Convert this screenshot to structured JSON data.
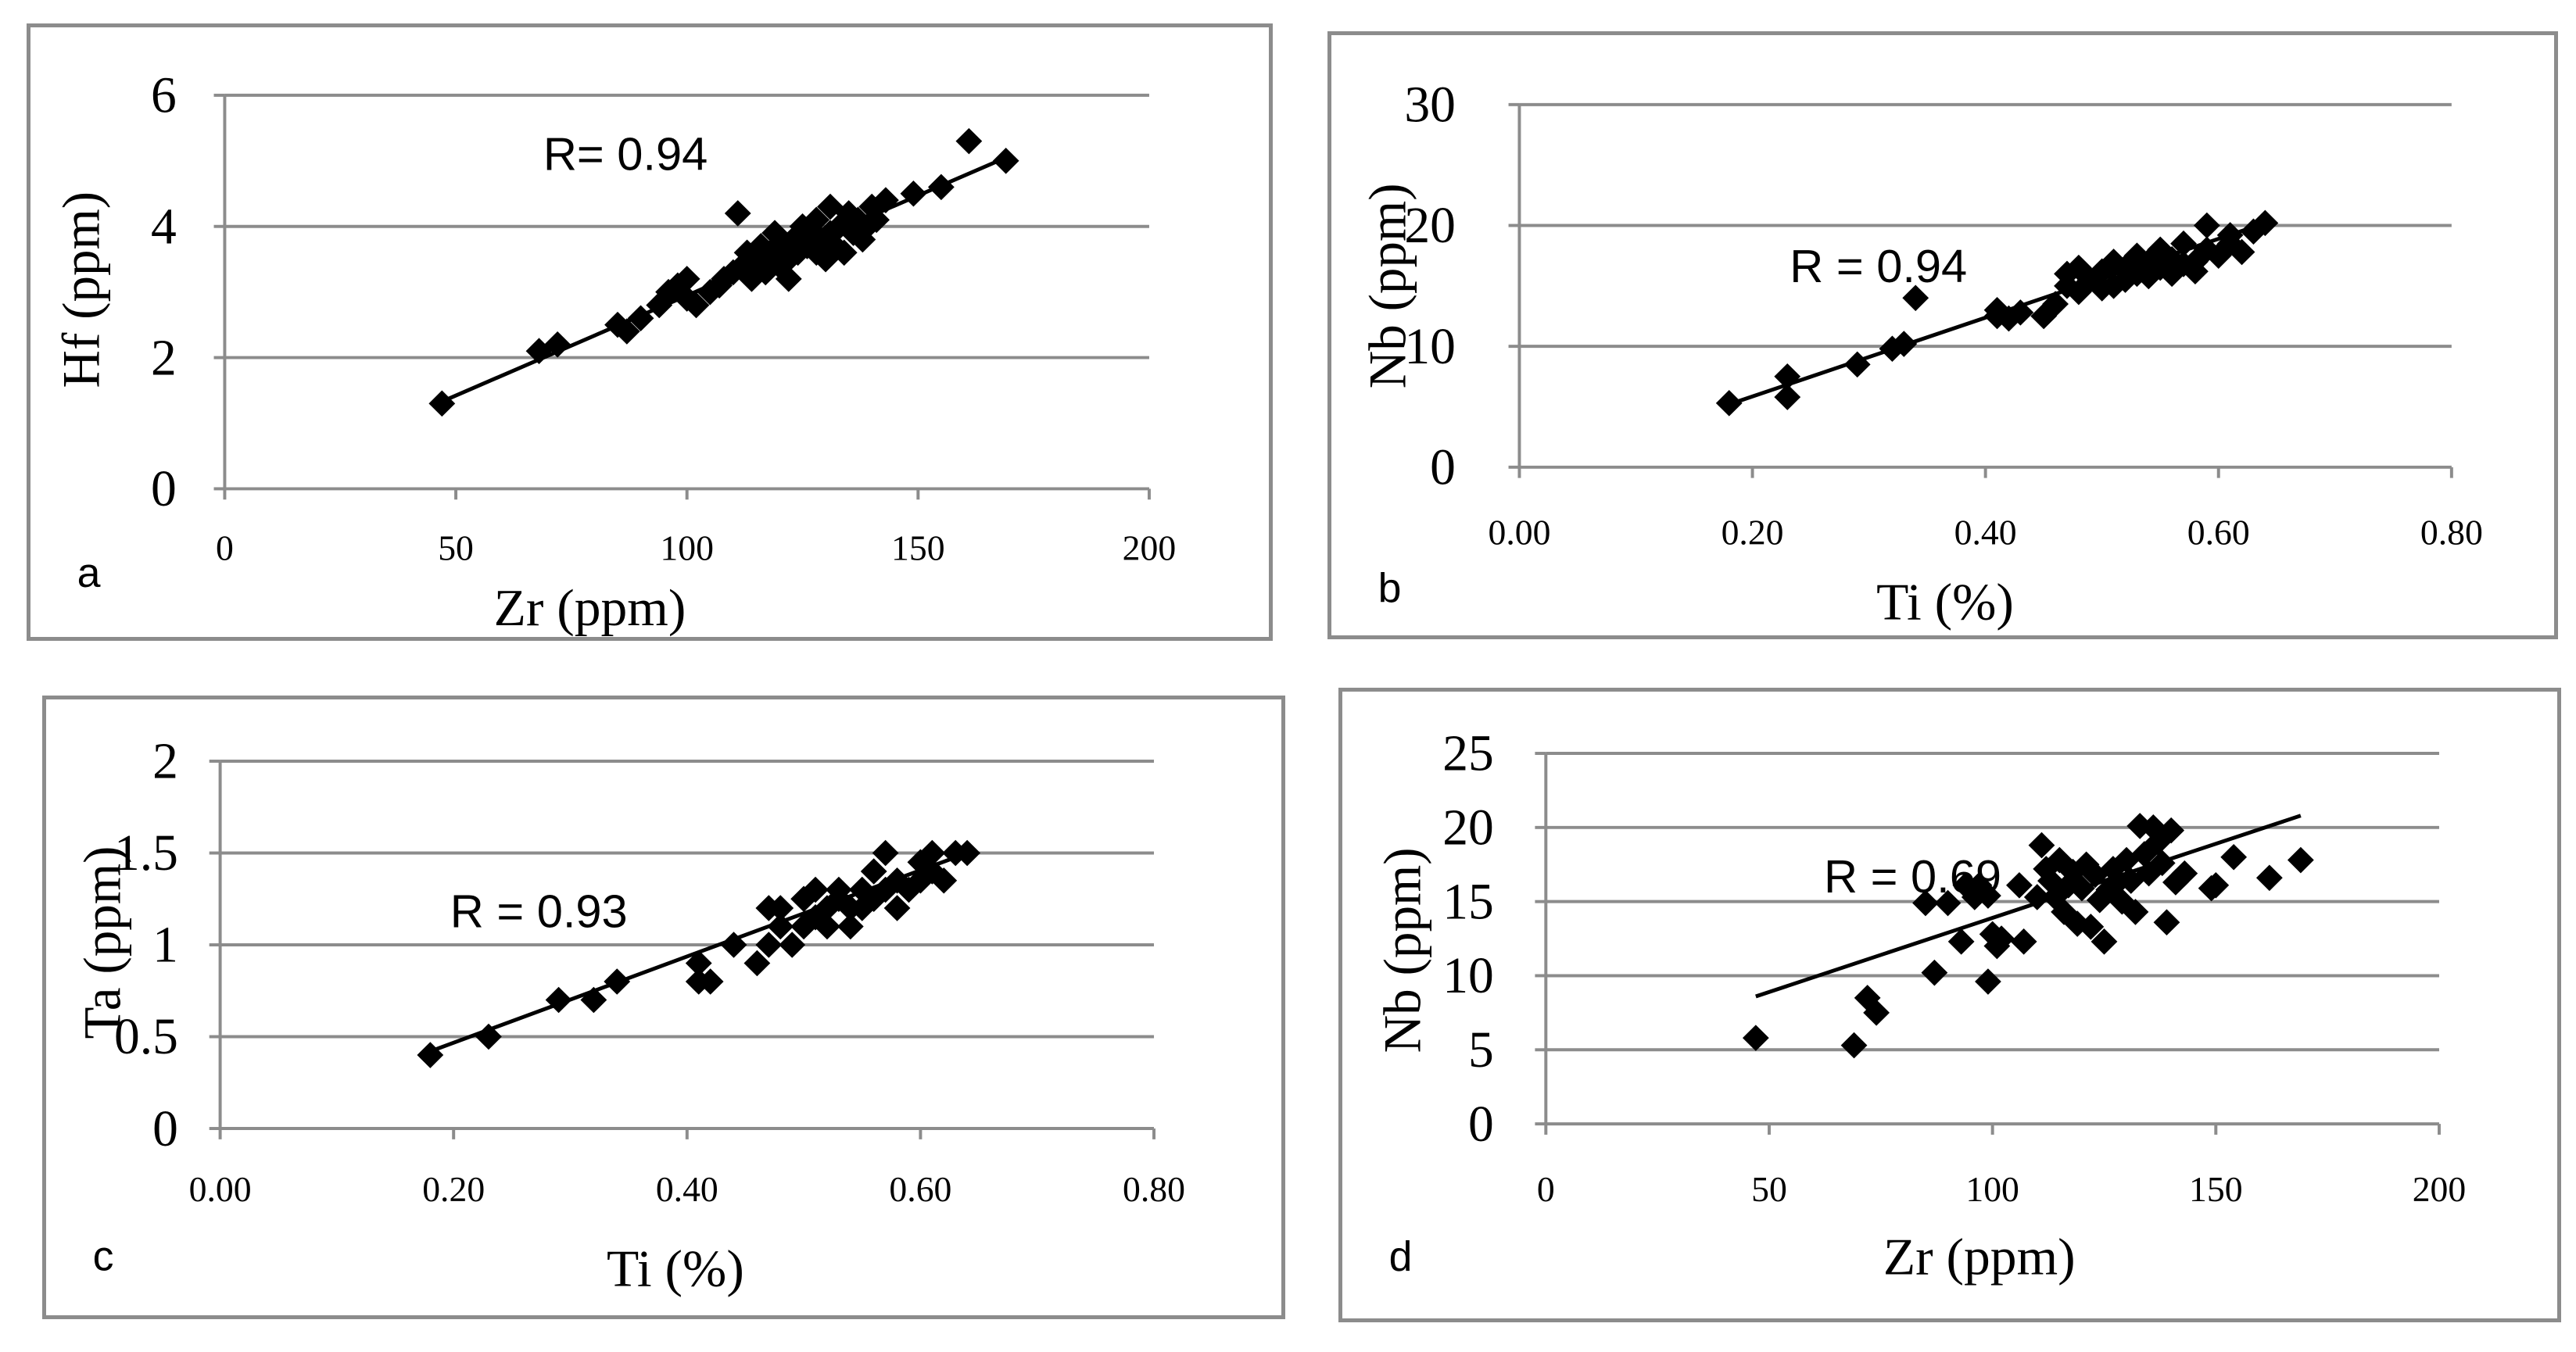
{
  "chart_data": [
    {
      "id": "a",
      "type": "scatter",
      "panel_label": "a",
      "xlabel": "Zr  (ppm)",
      "ylabel": "Hf (ppm)",
      "annotation": "R= 0.94",
      "xlim": [
        0,
        200
      ],
      "ylim": [
        0,
        6
      ],
      "xticks": [
        0,
        50,
        100,
        150,
        200
      ],
      "yticks": [
        0,
        2,
        4,
        6
      ],
      "xtick_labels": [
        "0",
        "50",
        "100",
        "150",
        "200"
      ],
      "ytick_labels": [
        "0",
        "2",
        "4",
        "6"
      ],
      "grid": "horizontal",
      "trendline": [
        [
          47,
          1.33
        ],
        [
          169,
          5.05
        ]
      ],
      "points": [
        [
          47,
          1.3
        ],
        [
          68,
          2.1
        ],
        [
          72,
          2.2
        ],
        [
          85,
          2.5
        ],
        [
          87,
          2.4
        ],
        [
          90,
          2.6
        ],
        [
          94,
          2.8
        ],
        [
          96,
          3.0
        ],
        [
          98,
          3.1
        ],
        [
          100,
          3.2
        ],
        [
          100,
          2.9
        ],
        [
          102,
          2.8
        ],
        [
          105,
          3.0
        ],
        [
          107,
          3.1
        ],
        [
          108,
          3.2
        ],
        [
          110,
          3.3
        ],
        [
          111,
          4.2
        ],
        [
          112,
          3.4
        ],
        [
          113,
          3.6
        ],
        [
          114,
          3.2
        ],
        [
          115,
          3.5
        ],
        [
          116,
          3.7
        ],
        [
          117,
          3.3
        ],
        [
          118,
          3.6
        ],
        [
          119,
          3.9
        ],
        [
          120,
          3.4
        ],
        [
          121,
          3.7
        ],
        [
          122,
          3.5
        ],
        [
          122,
          3.2
        ],
        [
          123,
          3.8
        ],
        [
          124,
          3.6
        ],
        [
          125,
          4.0
        ],
        [
          126,
          3.7
        ],
        [
          127,
          3.9
        ],
        [
          128,
          4.1
        ],
        [
          128,
          3.6
        ],
        [
          129,
          3.8
        ],
        [
          130,
          3.5
        ],
        [
          131,
          4.3
        ],
        [
          131,
          3.9
        ],
        [
          132,
          3.7
        ],
        [
          133,
          4.0
        ],
        [
          134,
          3.6
        ],
        [
          135,
          4.2
        ],
        [
          136,
          3.9
        ],
        [
          137,
          4.1
        ],
        [
          138,
          3.8
        ],
        [
          139,
          4.0
        ],
        [
          140,
          4.3
        ],
        [
          141,
          4.1
        ],
        [
          143,
          4.4
        ],
        [
          149,
          4.5
        ],
        [
          155,
          4.6
        ],
        [
          161,
          5.3
        ],
        [
          169,
          5.0
        ]
      ]
    },
    {
      "id": "b",
      "type": "scatter",
      "panel_label": "b",
      "xlabel": "Ti (%)",
      "ylabel": "Nb (ppm)",
      "annotation": "R = 0.94",
      "xlim": [
        0,
        0.8
      ],
      "ylim": [
        0,
        30
      ],
      "xticks": [
        0,
        0.2,
        0.4,
        0.6,
        0.8
      ],
      "yticks": [
        0,
        10,
        20,
        30
      ],
      "xtick_labels": [
        "0.00",
        "0.20",
        "0.40",
        "0.60",
        "0.80"
      ],
      "ytick_labels": [
        "0",
        "10",
        "20",
        "30"
      ],
      "grid": "horizontal",
      "trendline": [
        [
          0.18,
          5.2
        ],
        [
          0.64,
          20.2
        ]
      ],
      "points": [
        [
          0.18,
          5.3
        ],
        [
          0.23,
          7.5
        ],
        [
          0.23,
          5.8
        ],
        [
          0.29,
          8.5
        ],
        [
          0.32,
          9.8
        ],
        [
          0.33,
          10.2
        ],
        [
          0.34,
          14.0
        ],
        [
          0.41,
          12.5
        ],
        [
          0.41,
          13.0
        ],
        [
          0.42,
          12.3
        ],
        [
          0.43,
          12.8
        ],
        [
          0.45,
          12.5
        ],
        [
          0.46,
          13.5
        ],
        [
          0.47,
          15.0
        ],
        [
          0.47,
          16.0
        ],
        [
          0.48,
          16.5
        ],
        [
          0.48,
          14.5
        ],
        [
          0.49,
          15.5
        ],
        [
          0.5,
          14.8
        ],
        [
          0.5,
          16.2
        ],
        [
          0.51,
          15.0
        ],
        [
          0.51,
          17.0
        ],
        [
          0.52,
          15.5
        ],
        [
          0.52,
          16.5
        ],
        [
          0.53,
          16.0
        ],
        [
          0.53,
          17.5
        ],
        [
          0.54,
          15.8
        ],
        [
          0.54,
          17.0
        ],
        [
          0.55,
          16.5
        ],
        [
          0.55,
          18.0
        ],
        [
          0.56,
          16.0
        ],
        [
          0.56,
          17.2
        ],
        [
          0.57,
          16.8
        ],
        [
          0.57,
          18.5
        ],
        [
          0.58,
          17.0
        ],
        [
          0.58,
          16.2
        ],
        [
          0.59,
          18.0
        ],
        [
          0.59,
          20.0
        ],
        [
          0.6,
          17.5
        ],
        [
          0.61,
          18.5
        ],
        [
          0.61,
          19.2
        ],
        [
          0.62,
          17.8
        ],
        [
          0.63,
          19.5
        ],
        [
          0.64,
          20.2
        ]
      ]
    },
    {
      "id": "c",
      "type": "scatter",
      "panel_label": "c",
      "xlabel": "Ti (%)",
      "ylabel": "Ta (ppm)",
      "annotation": "R = 0.93",
      "xlim": [
        0,
        0.8
      ],
      "ylim": [
        0,
        2
      ],
      "xticks": [
        0,
        0.2,
        0.4,
        0.6,
        0.8
      ],
      "yticks": [
        0,
        0.5,
        1,
        1.5,
        2
      ],
      "xtick_labels": [
        "0.00",
        "0.20",
        "0.40",
        "0.60",
        "0.80"
      ],
      "ytick_labels": [
        "0",
        "0.5",
        "1",
        "1.5",
        "2"
      ],
      "grid": "horizontal",
      "trendline": [
        [
          0.18,
          0.42
        ],
        [
          0.64,
          1.5
        ]
      ],
      "points": [
        [
          0.18,
          0.4
        ],
        [
          0.23,
          0.5
        ],
        [
          0.29,
          0.7
        ],
        [
          0.32,
          0.7
        ],
        [
          0.34,
          0.8
        ],
        [
          0.41,
          0.8
        ],
        [
          0.41,
          0.9
        ],
        [
          0.42,
          0.8
        ],
        [
          0.44,
          1.0
        ],
        [
          0.46,
          0.9
        ],
        [
          0.47,
          1.0
        ],
        [
          0.47,
          1.2
        ],
        [
          0.48,
          1.1
        ],
        [
          0.48,
          1.2
        ],
        [
          0.49,
          1.0
        ],
        [
          0.5,
          1.1
        ],
        [
          0.5,
          1.25
        ],
        [
          0.51,
          1.15
        ],
        [
          0.51,
          1.3
        ],
        [
          0.52,
          1.2
        ],
        [
          0.52,
          1.1
        ],
        [
          0.53,
          1.25
        ],
        [
          0.53,
          1.3
        ],
        [
          0.54,
          1.1
        ],
        [
          0.54,
          1.2
        ],
        [
          0.55,
          1.3
        ],
        [
          0.55,
          1.2
        ],
        [
          0.56,
          1.4
        ],
        [
          0.56,
          1.25
        ],
        [
          0.57,
          1.5
        ],
        [
          0.57,
          1.3
        ],
        [
          0.58,
          1.2
        ],
        [
          0.58,
          1.35
        ],
        [
          0.59,
          1.3
        ],
        [
          0.6,
          1.45
        ],
        [
          0.6,
          1.35
        ],
        [
          0.61,
          1.5
        ],
        [
          0.61,
          1.4
        ],
        [
          0.62,
          1.35
        ],
        [
          0.63,
          1.5
        ],
        [
          0.64,
          1.5
        ]
      ]
    },
    {
      "id": "d",
      "type": "scatter",
      "panel_label": "d",
      "xlabel": "Zr (ppm)",
      "ylabel": "Nb (ppm)",
      "annotation": "R = 0.69",
      "xlim": [
        0,
        200
      ],
      "ylim": [
        0,
        25
      ],
      "xticks": [
        0,
        50,
        100,
        150,
        200
      ],
      "yticks": [
        0,
        5,
        10,
        15,
        20,
        25
      ],
      "xtick_labels": [
        "0",
        "50",
        "100",
        "150",
        "200"
      ],
      "ytick_labels": [
        "0",
        "5",
        "10",
        "15",
        "20",
        "25"
      ],
      "grid": "horizontal",
      "trendline": [
        [
          47,
          8.6
        ],
        [
          169,
          20.8
        ]
      ],
      "points": [
        [
          47,
          5.8
        ],
        [
          69,
          5.3
        ],
        [
          72,
          8.5
        ],
        [
          74,
          7.5
        ],
        [
          85,
          14.9
        ],
        [
          87,
          10.2
        ],
        [
          90,
          14.9
        ],
        [
          93,
          12.3
        ],
        [
          94,
          16.1
        ],
        [
          96,
          15.3
        ],
        [
          97,
          16.1
        ],
        [
          99,
          9.6
        ],
        [
          99,
          15.4
        ],
        [
          100,
          12.8
        ],
        [
          101,
          12.0
        ],
        [
          102,
          12.5
        ],
        [
          106,
          16.1
        ],
        [
          107,
          12.3
        ],
        [
          110,
          15.3
        ],
        [
          111,
          18.8
        ],
        [
          112,
          17.2
        ],
        [
          113,
          16.4
        ],
        [
          114,
          15.3
        ],
        [
          115,
          17.8
        ],
        [
          116,
          14.3
        ],
        [
          117,
          16.1
        ],
        [
          118,
          17.0
        ],
        [
          119,
          13.5
        ],
        [
          120,
          15.9
        ],
        [
          121,
          17.5
        ],
        [
          122,
          13.3
        ],
        [
          123,
          16.8
        ],
        [
          124,
          15.1
        ],
        [
          125,
          12.3
        ],
        [
          126,
          15.8
        ],
        [
          127,
          17.2
        ],
        [
          128,
          16.3
        ],
        [
          129,
          15.0
        ],
        [
          130,
          17.8
        ],
        [
          131,
          16.4
        ],
        [
          132,
          14.3
        ],
        [
          133,
          20.1
        ],
        [
          134,
          18.2
        ],
        [
          135,
          16.9
        ],
        [
          136,
          20.0
        ],
        [
          137,
          19.0
        ],
        [
          138,
          17.6
        ],
        [
          139,
          13.6
        ],
        [
          140,
          19.8
        ],
        [
          141,
          16.3
        ],
        [
          143,
          16.9
        ],
        [
          149,
          15.9
        ],
        [
          150,
          16.1
        ],
        [
          154,
          18.0
        ],
        [
          162,
          16.6
        ],
        [
          169,
          17.8
        ]
      ]
    }
  ]
}
